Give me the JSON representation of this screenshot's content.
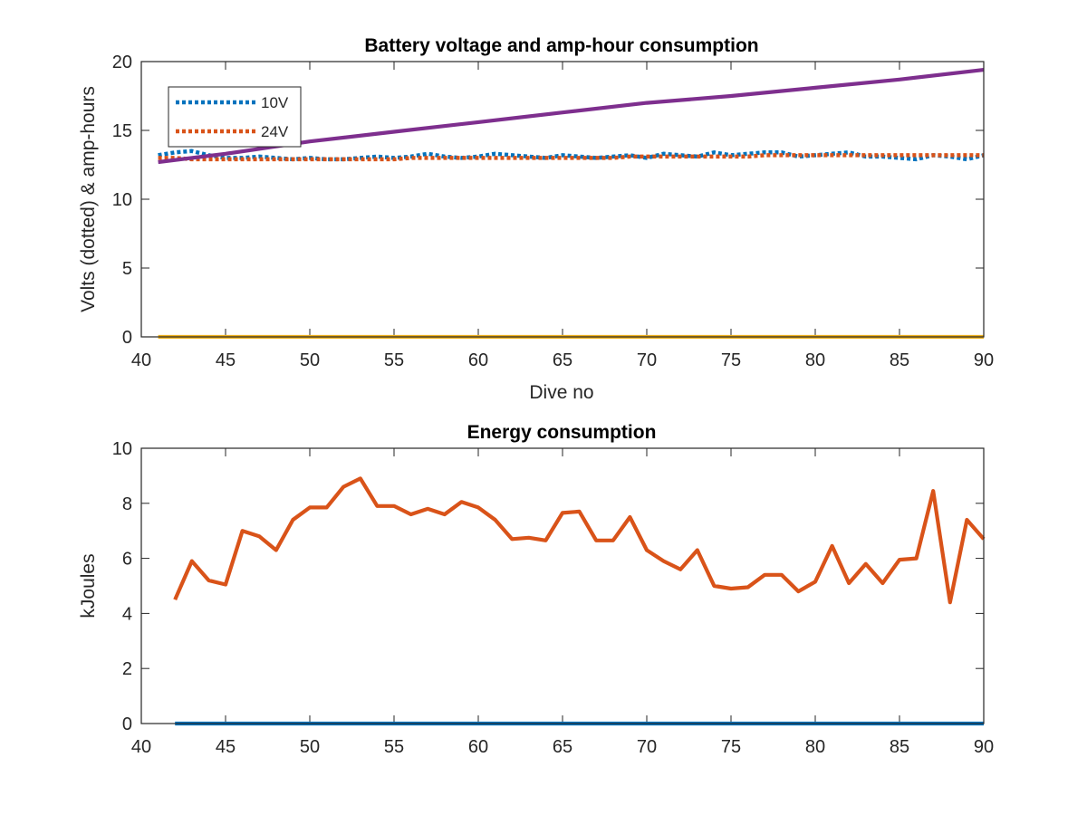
{
  "colors": {
    "v10": "#0072BD",
    "v24": "#D95319",
    "amp_hours": "#7E2F8E",
    "zero_line": "#EDB120",
    "energy": "#D95319",
    "energy_zero": "#0072BD",
    "axis": "#262626"
  },
  "chart_data": [
    {
      "type": "line",
      "title": "Battery voltage and amp-hour consumption",
      "xlabel": "Dive no",
      "ylabel": "Volts (dotted) & amp-hours",
      "xlim": [
        40,
        90
      ],
      "ylim": [
        0,
        20
      ],
      "xticks": [
        40,
        45,
        50,
        55,
        60,
        65,
        70,
        75,
        80,
        85,
        90
      ],
      "yticks": [
        0,
        5,
        10,
        15,
        20
      ],
      "grid": false,
      "legend": {
        "position": "top-left",
        "entries": [
          "10V",
          "24V"
        ]
      },
      "series": [
        {
          "name": "10V",
          "style": "dotted",
          "color": "#0072BD",
          "x": [
            41,
            42,
            43,
            44,
            45,
            46,
            47,
            48,
            49,
            50,
            51,
            52,
            53,
            54,
            55,
            56,
            57,
            58,
            59,
            60,
            61,
            62,
            63,
            64,
            65,
            66,
            67,
            68,
            69,
            70,
            71,
            72,
            73,
            74,
            75,
            76,
            77,
            78,
            79,
            80,
            81,
            82,
            83,
            84,
            85,
            86,
            87,
            88,
            89,
            90
          ],
          "y": [
            13.2,
            13.4,
            13.5,
            13.2,
            13.0,
            13.0,
            13.1,
            13.0,
            12.9,
            13.0,
            12.9,
            12.9,
            13.0,
            13.1,
            13.0,
            13.1,
            13.3,
            13.1,
            13.0,
            13.1,
            13.3,
            13.2,
            13.1,
            13.0,
            13.2,
            13.1,
            13.0,
            13.1,
            13.2,
            13.0,
            13.3,
            13.2,
            13.1,
            13.4,
            13.2,
            13.3,
            13.4,
            13.4,
            13.1,
            13.2,
            13.3,
            13.4,
            13.1,
            13.1,
            13.0,
            12.9,
            13.2,
            13.1,
            12.9,
            13.2
          ]
        },
        {
          "name": "24V",
          "style": "dotted",
          "color": "#D95319",
          "x": [
            41,
            42,
            43,
            44,
            45,
            46,
            47,
            48,
            49,
            50,
            51,
            52,
            53,
            54,
            55,
            56,
            57,
            58,
            59,
            60,
            61,
            62,
            63,
            64,
            65,
            66,
            67,
            68,
            69,
            70,
            71,
            72,
            73,
            74,
            75,
            76,
            77,
            78,
            79,
            80,
            81,
            82,
            83,
            84,
            85,
            86,
            87,
            88,
            89,
            90
          ],
          "y": [
            13.0,
            13.0,
            12.9,
            12.9,
            12.9,
            12.9,
            12.9,
            12.9,
            12.9,
            12.9,
            12.9,
            12.9,
            12.9,
            12.9,
            12.9,
            13.0,
            13.0,
            13.0,
            13.0,
            13.0,
            13.0,
            13.0,
            13.0,
            13.0,
            13.0,
            13.0,
            13.0,
            13.0,
            13.1,
            13.1,
            13.1,
            13.1,
            13.1,
            13.1,
            13.1,
            13.1,
            13.2,
            13.2,
            13.2,
            13.2,
            13.2,
            13.2,
            13.2,
            13.2,
            13.2,
            13.2,
            13.2,
            13.2,
            13.2,
            13.2
          ]
        },
        {
          "style": "solid",
          "color": "#7E2F8E",
          "x": [
            41,
            45,
            50,
            55,
            60,
            65,
            70,
            75,
            80,
            85,
            90
          ],
          "y": [
            12.7,
            13.3,
            14.2,
            14.9,
            15.6,
            16.3,
            17.0,
            17.5,
            18.1,
            18.7,
            19.4
          ]
        },
        {
          "style": "solid",
          "color": "#EDB120",
          "x": [
            41,
            90
          ],
          "y": [
            0,
            0
          ]
        }
      ]
    },
    {
      "type": "line",
      "title": "Energy consumption",
      "xlabel": "",
      "ylabel": "kJoules",
      "xlim": [
        40,
        90
      ],
      "ylim": [
        0,
        10
      ],
      "xticks": [
        40,
        45,
        50,
        55,
        60,
        65,
        70,
        75,
        80,
        85,
        90
      ],
      "yticks": [
        0,
        2,
        4,
        6,
        8,
        10
      ],
      "grid": false,
      "series": [
        {
          "style": "solid",
          "color": "#D95319",
          "x": [
            42,
            43,
            44,
            45,
            46,
            47,
            48,
            49,
            50,
            51,
            52,
            53,
            54,
            55,
            56,
            57,
            58,
            59,
            60,
            61,
            62,
            63,
            64,
            65,
            66,
            67,
            68,
            69,
            70,
            71,
            72,
            73,
            74,
            75,
            76,
            77,
            78,
            79,
            80,
            81,
            82,
            83,
            84,
            85,
            86,
            87,
            88,
            89,
            90
          ],
          "y": [
            4.5,
            5.9,
            5.2,
            5.05,
            7.0,
            6.8,
            6.3,
            7.4,
            7.85,
            7.85,
            8.6,
            8.9,
            7.9,
            7.9,
            7.6,
            7.8,
            7.6,
            8.05,
            7.85,
            7.4,
            6.7,
            6.75,
            6.65,
            7.65,
            7.7,
            6.65,
            6.65,
            7.5,
            6.3,
            5.9,
            5.6,
            6.3,
            5.0,
            4.9,
            4.95,
            5.4,
            5.4,
            4.8,
            5.15,
            6.45,
            5.1,
            5.8,
            5.1,
            5.95,
            6.0,
            8.45,
            4.4,
            7.4,
            6.7
          ]
        },
        {
          "style": "solid",
          "color": "#0072BD",
          "x": [
            42,
            90
          ],
          "y": [
            0,
            0
          ]
        }
      ]
    }
  ]
}
